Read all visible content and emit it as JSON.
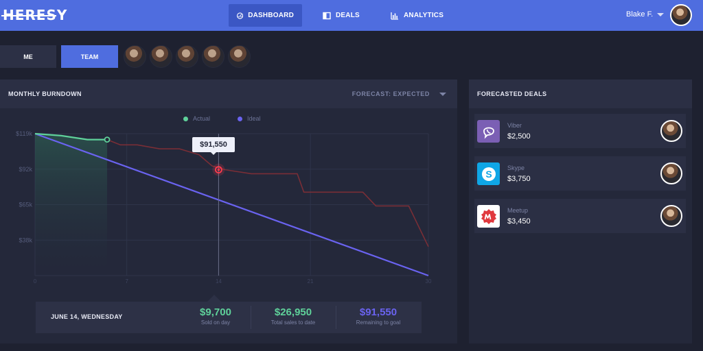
{
  "app": {
    "logo": "HERESY"
  },
  "nav": {
    "items": [
      {
        "label": "DASHBOARD",
        "icon": "dashboard-icon",
        "active": true
      },
      {
        "label": "DEALS",
        "icon": "deals-icon",
        "active": false
      },
      {
        "label": "ANALYTICS",
        "icon": "analytics-icon",
        "active": false
      }
    ],
    "user_name": "Blake F."
  },
  "scope": {
    "me_label": "ME",
    "team_label": "TEAM",
    "team_member_count": 5
  },
  "burndown": {
    "title": "MONTHLY BURNDOWN",
    "forecast_label": "FORECAST: EXPECTED",
    "tooltip_value": "$91,550",
    "legend": {
      "actual": "Actual",
      "ideal": "Ideal"
    },
    "stats": {
      "date": "JUNE 14, WEDNESDAY",
      "sold_value": "$9,700",
      "sold_label": "Sold on day",
      "total_value": "$26,950",
      "total_label": "Total sales to date",
      "remaining_value": "$91,550",
      "remaining_label": "Remaining to goal"
    }
  },
  "deals": {
    "title": "FORECASTED DEALS",
    "items": [
      {
        "name": "Viber",
        "amount": "$2,500",
        "color": "#7b5fb4",
        "icon": "viber-icon"
      },
      {
        "name": "Skype",
        "amount": "$3,750",
        "color": "#0fa6e6",
        "icon": "skype-icon"
      },
      {
        "name": "Meetup",
        "amount": "$3,450",
        "color": "#ffffff",
        "icon": "meetup-icon"
      }
    ]
  },
  "colors": {
    "accent": "#4f6ddf",
    "actual": "#5fd19a",
    "ideal": "#6a63f0",
    "forecast": "#7a2e36",
    "highlight": "#ff3b4e"
  },
  "chart_data": {
    "type": "line",
    "title": "MONTHLY BURNDOWN",
    "x_ticks": [
      "0",
      "7",
      "14",
      "21",
      "30"
    ],
    "y_ticks": [
      "$119k",
      "$92k",
      "$65k",
      "$38k"
    ],
    "ylim": [
      11000,
      119000
    ],
    "xlim": [
      0,
      30
    ],
    "series": [
      {
        "name": "Actual",
        "color": "#5fd19a",
        "x": [
          0,
          2,
          4,
          5.5
        ],
        "y": [
          119000,
          117500,
          114500,
          114500
        ]
      },
      {
        "name": "Ideal",
        "color": "#6a63f0",
        "x": [
          0,
          30
        ],
        "y": [
          119000,
          11000
        ]
      },
      {
        "color": "#7a2e36",
        "x": [
          5.5,
          6.5,
          7.8,
          9.5,
          11,
          12.5,
          13.5,
          14.5,
          16.5,
          20,
          20.5,
          25,
          26,
          28.5,
          30
        ],
        "y": [
          114500,
          110500,
          110500,
          107500,
          107500,
          103000,
          94500,
          91550,
          88500,
          88500,
          74500,
          74500,
          64000,
          64000,
          33000
        ]
      }
    ],
    "highlight": {
      "x": 14,
      "y": 91550
    },
    "shaded_region": {
      "x": [
        0,
        5.5
      ]
    },
    "grid": true
  }
}
